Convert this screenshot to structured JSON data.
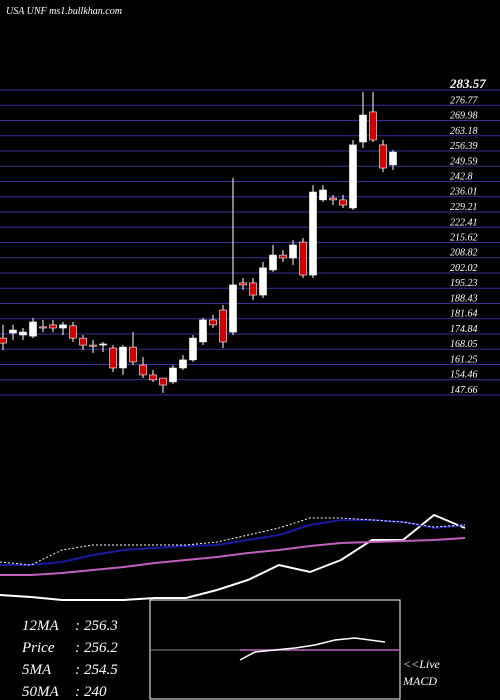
{
  "chart_data": [
    {
      "type": "candlestick",
      "title": "USA UNF ms1.bullkhan.com",
      "open": [
        173.0,
        175.3,
        174.4,
        173.9,
        178.0,
        178.9,
        177.5,
        178.5,
        173.0,
        169.9,
        169.9,
        168.6,
        159.7,
        169.0,
        161.0,
        156.6,
        155.2,
        153.5,
        159.7,
        163.3,
        171.3,
        181.1,
        185.5,
        175.7,
        197.6,
        197.6,
        192.2,
        203.4,
        210.0,
        208.7,
        215.8,
        201.1,
        234.6,
        235.4,
        234.6,
        231.0,
        260.4,
        273.8,
        259.1,
        250.2
      ],
      "high": [
        178.9,
        178.9,
        177.5,
        182.0,
        181.1,
        181.1,
        180.2,
        180.2,
        174.4,
        172.2,
        171.3,
        169.9,
        169.9,
        175.7,
        164.6,
        158.8,
        155.2,
        161.0,
        165.5,
        174.4,
        182.0,
        183.3,
        187.8,
        244.4,
        199.8,
        199.8,
        206.9,
        214.5,
        212.3,
        216.7,
        217.6,
        241.2,
        241.2,
        236.8,
        236.8,
        261.3,
        282.7,
        282.7,
        261.3,
        256.8
      ],
      "low": [
        167.7,
        172.2,
        172.2,
        173.0,
        175.7,
        175.7,
        174.4,
        171.3,
        167.7,
        166.4,
        166.8,
        157.9,
        156.6,
        161.0,
        155.2,
        153.5,
        148.6,
        152.6,
        158.8,
        162.4,
        169.9,
        177.5,
        168.6,
        174.4,
        194.5,
        190.0,
        190.9,
        202.5,
        206.9,
        205.6,
        199.8,
        199.8,
        233.7,
        232.3,
        231.0,
        230.1,
        257.7,
        260.4,
        247.0,
        247.9
      ],
      "close": [
        170.8,
        176.6,
        175.7,
        180.2,
        177.5,
        177.5,
        178.9,
        173.0,
        169.9,
        169.4,
        170.4,
        159.7,
        169.0,
        162.4,
        156.6,
        154.4,
        152.1,
        159.7,
        163.3,
        173.0,
        181.1,
        178.9,
        171.3,
        196.7,
        196.7,
        192.2,
        204.3,
        210.0,
        208.7,
        214.5,
        201.1,
        238.1,
        239.0,
        234.6,
        232.3,
        259.1,
        272.4,
        261.3,
        248.8,
        255.9
      ],
      "up_color": "#ffffff",
      "down_color": "#cc0000",
      "grid_color": "#33339a",
      "ylim": [
        147.66,
        283.57
      ],
      "yticks": [
        147.66,
        154.46,
        161.25,
        168.05,
        174.84,
        181.64,
        188.43,
        195.23,
        202.02,
        208.82,
        215.62,
        222.41,
        229.21,
        236.01,
        242.8,
        249.59,
        256.39,
        263.18,
        269.98,
        276.77,
        283.57
      ]
    },
    {
      "type": "line",
      "xlim": [
        0,
        465
      ],
      "ylim": [
        0,
        100
      ],
      "x": [
        0,
        31,
        62,
        93,
        124,
        155,
        186,
        217,
        248,
        279,
        310,
        341,
        372,
        403,
        434,
        465
      ],
      "series": [
        {
          "color": "#ffffff",
          "values": [
            5,
            3,
            0,
            0,
            0,
            2,
            2,
            10,
            20,
            35,
            28,
            40,
            60,
            60,
            85,
            72
          ]
        },
        {
          "color": "#1a1aa0",
          "values": [
            35,
            35,
            38,
            45,
            50,
            52,
            54,
            55,
            60,
            65,
            75,
            80,
            80,
            78,
            72,
            75
          ]
        },
        {
          "color": "#c060c0",
          "values": [
            25,
            25,
            27,
            30,
            33,
            37,
            40,
            43,
            47,
            50,
            54,
            57,
            58,
            59,
            60,
            62
          ]
        },
        {
          "color": "#ffffff",
          "dashed": true,
          "values": [
            38,
            35,
            50,
            55,
            55,
            55,
            55,
            58,
            65,
            72,
            82,
            82,
            80,
            78,
            73,
            75
          ]
        }
      ],
      "stats": [
        {
          "label": "12MA",
          "value": "256.3"
        },
        {
          "label": "Price",
          "value": "256.2"
        },
        {
          "label": "5MA",
          "value": "254.5"
        },
        {
          "label": "50MA",
          "value": "240"
        }
      ]
    },
    {
      "type": "line",
      "xlim": [
        0,
        10
      ],
      "ylim": [
        -50,
        50
      ],
      "label": "<<Live",
      "sublabel": "MACD",
      "series": [
        {
          "color": "#c060c0",
          "x": [
            3.6,
            10
          ],
          "values": [
            0,
            0
          ]
        },
        {
          "color": "#ffffff",
          "x": [
            3.6,
            4.2,
            5,
            5.8,
            6.6,
            7.4,
            8.2,
            9.4
          ],
          "values": [
            -10,
            -2,
            0,
            2,
            5,
            10,
            12,
            8
          ]
        }
      ]
    }
  ]
}
